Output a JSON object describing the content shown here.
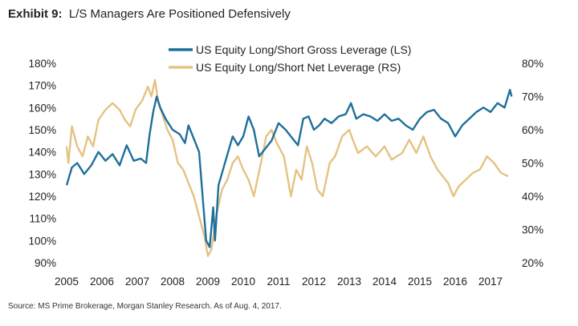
{
  "header": {
    "exhibit": "Exhibit 9:",
    "title": "L/S Managers Are Positioned Defensively"
  },
  "source": "Source: MS Prime Brokerage, Morgan Stanley Research. As of Aug. 4, 2017.",
  "chart_data": {
    "type": "line",
    "title": "L/S Managers Are Positioned Defensively",
    "legend_position": "top-center",
    "grid": false,
    "x_ticks": [
      "2005",
      "2006",
      "2007",
      "2008",
      "2009",
      "2010",
      "2011",
      "2012",
      "2013",
      "2014",
      "2015",
      "2016",
      "2017"
    ],
    "xlim": [
      2005,
      2017.8
    ],
    "y_left": {
      "ticks": [
        "90%",
        "100%",
        "110%",
        "120%",
        "130%",
        "140%",
        "150%",
        "160%",
        "170%",
        "180%"
      ],
      "ylim": [
        90,
        180
      ]
    },
    "y_right": {
      "ticks": [
        "20%",
        "30%",
        "40%",
        "50%",
        "60%",
        "70%",
        "80%"
      ],
      "ylim": [
        20,
        80
      ]
    },
    "series": [
      {
        "name": "US Equity Long/Short Gross Leverage (LS)",
        "axis": "left",
        "color": "#1f6f9b",
        "x": [
          2005.0,
          2005.15,
          2005.3,
          2005.5,
          2005.7,
          2005.9,
          2006.1,
          2006.3,
          2006.5,
          2006.7,
          2006.9,
          2007.1,
          2007.25,
          2007.35,
          2007.45,
          2007.55,
          2007.65,
          2007.8,
          2008.0,
          2008.2,
          2008.35,
          2008.45,
          2008.6,
          2008.75,
          2008.85,
          2008.95,
          2009.05,
          2009.15,
          2009.2,
          2009.3,
          2009.5,
          2009.7,
          2009.85,
          2010.0,
          2010.15,
          2010.3,
          2010.45,
          2010.6,
          2010.8,
          2011.0,
          2011.2,
          2011.4,
          2011.55,
          2011.7,
          2011.85,
          2012.0,
          2012.15,
          2012.3,
          2012.5,
          2012.7,
          2012.9,
          2013.05,
          2013.2,
          2013.4,
          2013.6,
          2013.8,
          2014.0,
          2014.2,
          2014.4,
          2014.6,
          2014.8,
          2015.0,
          2015.2,
          2015.4,
          2015.6,
          2015.8,
          2016.0,
          2016.2,
          2016.4,
          2016.6,
          2016.8,
          2017.0,
          2017.2,
          2017.4,
          2017.55,
          2017.6
        ],
        "y": [
          125,
          133,
          135,
          130,
          134,
          140,
          136,
          139,
          134,
          143,
          136,
          137,
          135,
          148,
          158,
          165,
          160,
          155,
          150,
          148,
          144,
          152,
          146,
          140,
          120,
          100,
          97,
          115,
          100,
          125,
          136,
          147,
          143,
          147,
          156,
          150,
          138,
          141,
          145,
          153,
          150,
          146,
          143,
          155,
          156,
          150,
          152,
          155,
          153,
          156,
          157,
          162,
          155,
          157,
          156,
          154,
          157,
          154,
          155,
          152,
          150,
          155,
          158,
          159,
          155,
          153,
          147,
          152,
          155,
          158,
          160,
          158,
          162,
          160,
          168,
          165
        ]
      },
      {
        "name": "US Equity Long/Short Net Leverage (RS)",
        "axis": "right",
        "color": "#e4c383",
        "x": [
          2005.0,
          2005.05,
          2005.15,
          2005.3,
          2005.45,
          2005.6,
          2005.75,
          2005.9,
          2006.1,
          2006.3,
          2006.5,
          2006.65,
          2006.8,
          2006.95,
          2007.15,
          2007.3,
          2007.4,
          2007.5,
          2007.6,
          2007.7,
          2007.85,
          2008.0,
          2008.15,
          2008.3,
          2008.45,
          2008.6,
          2008.75,
          2008.9,
          2009.0,
          2009.1,
          2009.25,
          2009.4,
          2009.55,
          2009.7,
          2009.85,
          2010.0,
          2010.15,
          2010.3,
          2010.5,
          2010.65,
          2010.8,
          2010.95,
          2011.15,
          2011.35,
          2011.5,
          2011.65,
          2011.8,
          2011.95,
          2012.1,
          2012.25,
          2012.45,
          2012.6,
          2012.8,
          2013.0,
          2013.1,
          2013.25,
          2013.5,
          2013.75,
          2014.0,
          2014.2,
          2014.5,
          2014.7,
          2014.9,
          2015.1,
          2015.3,
          2015.5,
          2015.65,
          2015.8,
          2015.95,
          2016.1,
          2016.3,
          2016.5,
          2016.7,
          2016.9,
          2017.1,
          2017.3,
          2017.5
        ],
        "y": [
          55,
          50,
          61,
          55,
          52,
          58,
          55,
          63,
          66,
          68,
          66,
          63,
          61,
          66,
          69,
          73,
          70,
          75,
          68,
          65,
          60,
          57,
          50,
          48,
          44,
          40,
          34,
          28,
          22,
          24,
          35,
          42,
          45,
          50,
          52,
          48,
          45,
          40,
          50,
          58,
          60,
          56,
          52,
          40,
          48,
          45,
          55,
          50,
          42,
          40,
          50,
          52,
          58,
          60,
          57,
          53,
          55,
          52,
          55,
          51,
          53,
          57,
          53,
          58,
          52,
          48,
          46,
          44,
          40,
          43,
          45,
          47,
          48,
          52,
          50,
          47,
          46
        ]
      }
    ]
  }
}
